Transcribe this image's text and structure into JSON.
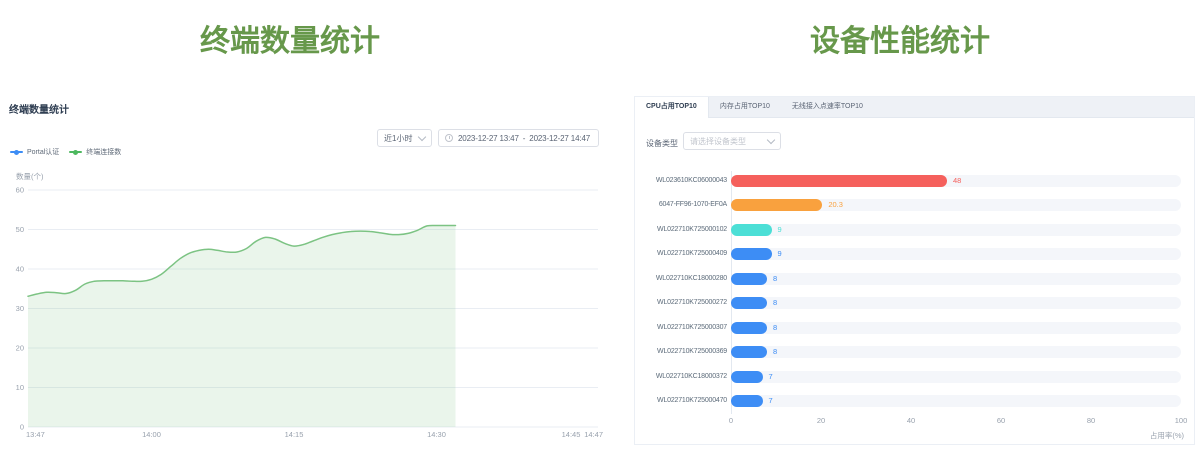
{
  "left_panel": {
    "big_title": "终端数量统计",
    "section_title": "终端数量统计",
    "controls": {
      "time_range_select": {
        "value": "近1小时"
      },
      "date_range": {
        "start": "2023-12-27 13:47",
        "separator": "-",
        "end": "2023-12-27 14:47"
      }
    },
    "legend": [
      {
        "label": "Portal认证",
        "color": "#3d8df5"
      },
      {
        "label": "终端连接数",
        "color": "#4db85f"
      }
    ],
    "chart_data": {
      "type": "area",
      "title": "终端数量统计",
      "ylabel": "数量(个)",
      "ylim": [
        0,
        60
      ],
      "y_ticks": [
        0,
        10,
        20,
        30,
        40,
        50,
        60
      ],
      "x_tick_labels": [
        "13:47",
        "14:00",
        "14:15",
        "14:30",
        "14:45",
        "14:47"
      ],
      "x_range_minutes": 60,
      "grid": true,
      "series": [
        {
          "name": "终端连接数",
          "color": "#7cc383",
          "fill": "rgba(124,195,131,0.16)",
          "start_minute": 0,
          "step_minutes": 1,
          "values": [
            33.1,
            33.7,
            34.1,
            34.0,
            33.8,
            34.6,
            36.2,
            36.9,
            37.0,
            37.0,
            37.0,
            36.9,
            36.9,
            37.4,
            38.6,
            40.6,
            42.6,
            44.0,
            44.7,
            45.0,
            44.7,
            44.3,
            44.3,
            45.2,
            47.0,
            48.0,
            47.6,
            46.5,
            45.8,
            46.2,
            47.1,
            48.0,
            48.7,
            49.2,
            49.5,
            49.6,
            49.5,
            49.2,
            48.8,
            48.7,
            49.0,
            49.8,
            50.9,
            51.0,
            51.0,
            51.0
          ]
        },
        {
          "name": "Portal认证",
          "color": "#3d8df5",
          "values": []
        }
      ]
    }
  },
  "right_panel": {
    "big_title": "设备性能统计",
    "tabs": [
      {
        "label": "CPU占用TOP10",
        "active": true
      },
      {
        "label": "内存占用TOP10",
        "active": false
      },
      {
        "label": "无线接入点速率TOP10",
        "active": false
      }
    ],
    "device_type": {
      "label": "设备类型",
      "placeholder": "请选择设备类型"
    },
    "chart_data": {
      "type": "bar",
      "orientation": "horizontal",
      "categories": [
        "WL023610KC06000043",
        "6047-FF96-1070-EF0A",
        "WL022710K725000102",
        "WL022710K725000409",
        "WL022710KC18000280",
        "WL022710K725000272",
        "WL022710K725000307",
        "WL022710K725000369",
        "WL022710KC18000372",
        "WL022710K725000470"
      ],
      "values": [
        48,
        20.3,
        9,
        9,
        8,
        8,
        8,
        8,
        7,
        7
      ],
      "bar_colors": [
        "#f5605c",
        "#f9a13e",
        "#4cdfd6",
        "#3d8df5",
        "#3d8df5",
        "#3d8df5",
        "#3d8df5",
        "#3d8df5",
        "#3d8df5",
        "#3d8df5"
      ],
      "xlabel": "占用率(%)",
      "xlim": [
        0,
        100
      ],
      "x_ticks": [
        0,
        20,
        40,
        60,
        80,
        100
      ]
    }
  }
}
